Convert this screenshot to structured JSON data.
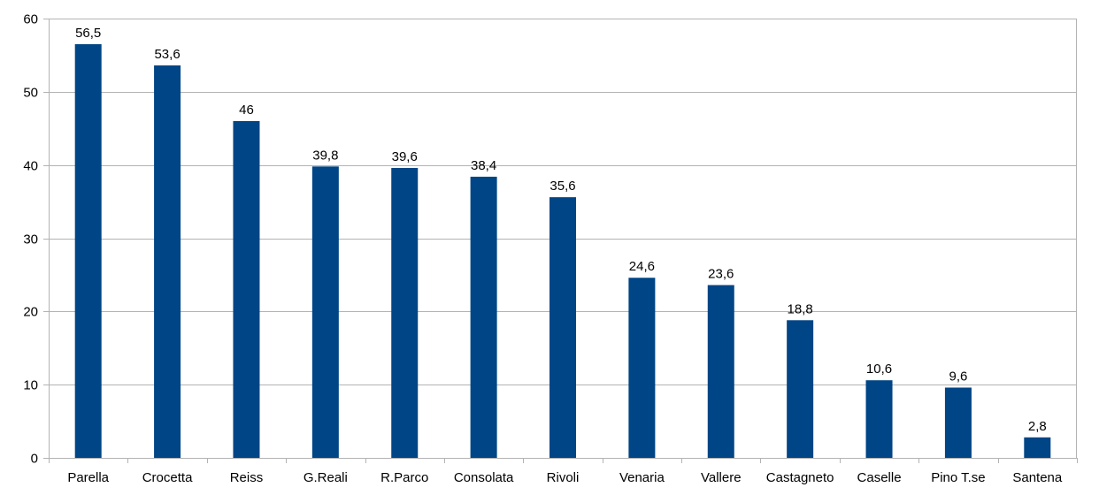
{
  "chart_data": {
    "type": "bar",
    "categories": [
      "Parella",
      "Crocetta",
      "Reiss",
      "G.Reali",
      "R.Parco",
      "Consolata",
      "Rivoli",
      "Venaria",
      "Vallere",
      "Castagneto",
      "Caselle",
      "Pino T.se",
      "Santena"
    ],
    "values": [
      56.5,
      53.6,
      46,
      39.8,
      39.6,
      38.4,
      35.6,
      24.6,
      23.6,
      18.8,
      10.6,
      9.6,
      2.8
    ],
    "data_labels": [
      "56,5",
      "53,6",
      "46",
      "39,8",
      "39,6",
      "38,4",
      "35,6",
      "24,6",
      "23,6",
      "18,8",
      "10,6",
      "9,6",
      "2,8"
    ],
    "y_ticks": [
      "0",
      "10",
      "20",
      "30",
      "40",
      "50",
      "60"
    ],
    "ylim": [
      0,
      60
    ],
    "grid": true,
    "legend": "none",
    "bar_color": "#004586",
    "grid_color": "#b3b3b3"
  }
}
